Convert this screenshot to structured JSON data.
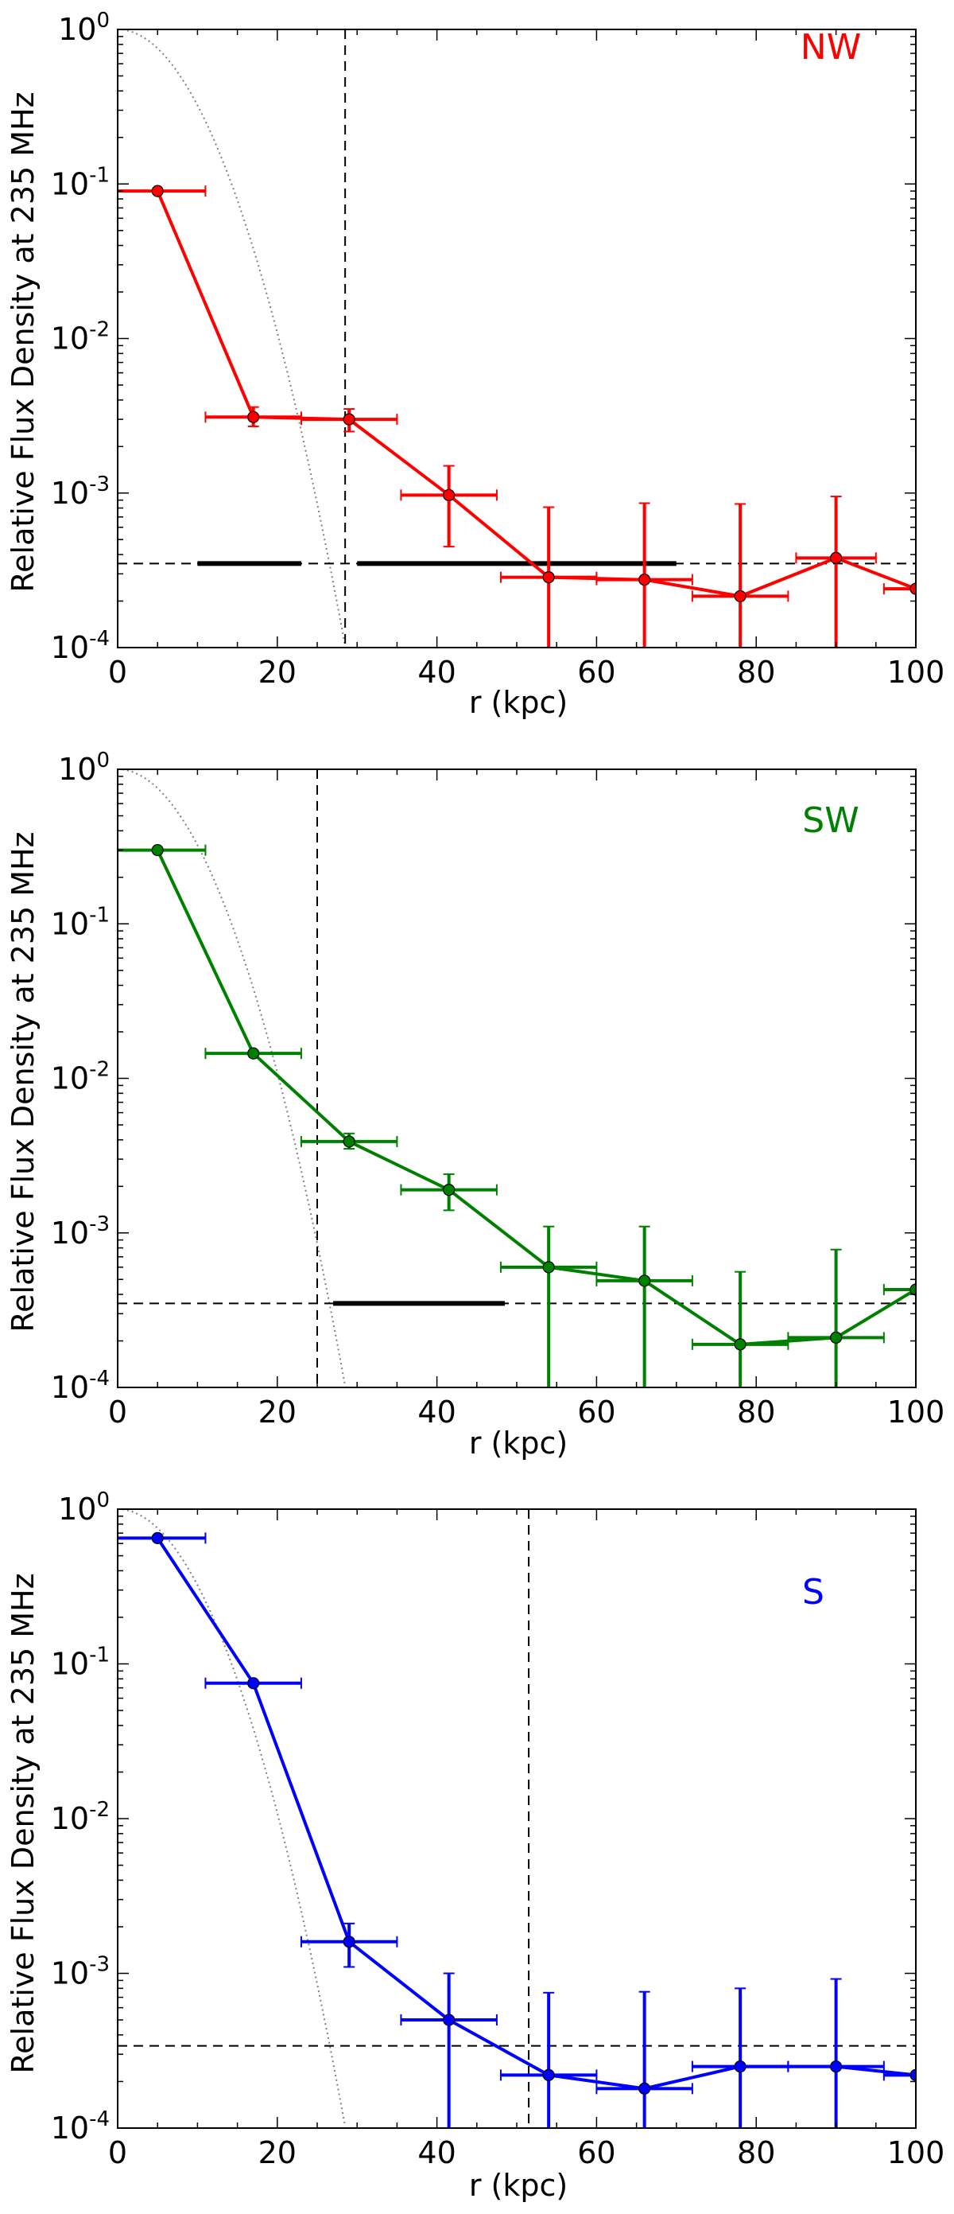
{
  "chart_data": [
    {
      "type": "line",
      "panel_label": "NW",
      "color": "#ff0000",
      "xlabel": "r (kpc)",
      "ylabel": "Relative Flux Density at 235 MHz",
      "xlim": [
        0,
        100
      ],
      "ylim": [
        0.0001,
        1
      ],
      "yscale": "log",
      "x_ticks": [
        0,
        20,
        40,
        60,
        80,
        100
      ],
      "x_tick_labels": [
        "0",
        "20",
        "40",
        "60",
        "80",
        "100"
      ],
      "y_ticks": [
        1,
        0.1,
        0.01,
        0.001,
        0.0001
      ],
      "y_tick_bases": [
        "10",
        "10",
        "10",
        "10",
        "10"
      ],
      "y_tick_exps": [
        "0",
        "-1",
        "-2",
        "-3",
        "-4"
      ],
      "vline_x": 28.5,
      "hline_y": 0.00035,
      "thick_segments": [
        [
          10,
          23
        ],
        [
          30,
          70
        ]
      ],
      "reference_curve": {
        "style": "dotted",
        "color": "#808080",
        "scale_kpc": 6.65
      },
      "series": [
        {
          "name": "NW",
          "x": [
            5,
            17,
            29,
            41.5,
            54,
            66,
            78,
            90,
            100
          ],
          "y": [
            0.09,
            0.0031,
            0.003,
            0.00097,
            0.000285,
            0.000275,
            0.000215,
            0.00038,
            0.00024
          ],
          "x_err": [
            6,
            6,
            6,
            6,
            6,
            6,
            6,
            5,
            4
          ],
          "y_low": [
            0.09,
            0.0027,
            0.0025,
            0.00045,
            0.0001,
            0.0001,
            0.0001,
            0.0001,
            0.00024
          ],
          "y_high": [
            0.09,
            0.0036,
            0.0035,
            0.0015,
            0.00081,
            0.00086,
            0.00085,
            0.00095,
            0.00024
          ]
        }
      ]
    },
    {
      "type": "line",
      "panel_label": "SW",
      "color": "#008000",
      "xlabel": "r (kpc)",
      "ylabel": "Relative Flux Density at 235 MHz",
      "xlim": [
        0,
        100
      ],
      "ylim": [
        0.0001,
        1
      ],
      "yscale": "log",
      "x_ticks": [
        0,
        20,
        40,
        60,
        80,
        100
      ],
      "x_tick_labels": [
        "0",
        "20",
        "40",
        "60",
        "80",
        "100"
      ],
      "y_ticks": [
        1,
        0.1,
        0.01,
        0.001,
        0.0001
      ],
      "y_tick_bases": [
        "10",
        "10",
        "10",
        "10",
        "10"
      ],
      "y_tick_exps": [
        "0",
        "-1",
        "-2",
        "-3",
        "-4"
      ],
      "vline_x": 25,
      "hline_y": 0.00035,
      "thick_segments": [
        [
          27,
          48.5
        ]
      ],
      "reference_curve": {
        "style": "dotted",
        "color": "#808080",
        "scale_kpc": 6.65
      },
      "series": [
        {
          "name": "SW",
          "x": [
            5,
            17,
            29,
            41.5,
            54,
            66,
            78,
            90,
            100
          ],
          "y": [
            0.3,
            0.0145,
            0.0039,
            0.0019,
            0.0006,
            0.00049,
            0.00019,
            0.00021,
            0.00043
          ],
          "x_err": [
            6,
            6,
            6,
            6,
            6,
            6,
            6,
            6,
            4
          ],
          "y_low": [
            0.3,
            0.0145,
            0.0035,
            0.0014,
            0.0001,
            0.0001,
            0.0001,
            0.0001,
            0.00043
          ],
          "y_high": [
            0.3,
            0.0145,
            0.0044,
            0.0024,
            0.0011,
            0.0011,
            0.00056,
            0.00078,
            0.00043
          ]
        }
      ]
    },
    {
      "type": "line",
      "panel_label": "S",
      "color": "#0000ff",
      "xlabel": "r (kpc)",
      "ylabel": "Relative Flux Density at 235 MHz",
      "xlim": [
        0,
        100
      ],
      "ylim": [
        0.0001,
        1
      ],
      "yscale": "log",
      "x_ticks": [
        0,
        20,
        40,
        60,
        80,
        100
      ],
      "x_tick_labels": [
        "0",
        "20",
        "40",
        "60",
        "80",
        "100"
      ],
      "y_ticks": [
        1,
        0.1,
        0.01,
        0.001,
        0.0001
      ],
      "y_tick_bases": [
        "10",
        "10",
        "10",
        "10",
        "10"
      ],
      "y_tick_exps": [
        "0",
        "-1",
        "-2",
        "-3",
        "-4"
      ],
      "vline_x": 51.5,
      "hline_y": 0.00034,
      "thick_segments": [],
      "reference_curve": {
        "style": "dotted",
        "color": "#808080",
        "scale_kpc": 6.65
      },
      "series": [
        {
          "name": "S",
          "x": [
            5,
            17,
            29,
            41.5,
            54,
            66,
            78,
            90,
            100
          ],
          "y": [
            0.65,
            0.075,
            0.0016,
            0.0005,
            0.00022,
            0.00018,
            0.00025,
            0.00025,
            0.00022
          ],
          "x_err": [
            6,
            6,
            6,
            6,
            6,
            6,
            6,
            6,
            4
          ],
          "y_low": [
            0.65,
            0.075,
            0.0011,
            0.0001,
            0.0001,
            0.0001,
            0.0001,
            0.0001,
            0.00022
          ],
          "y_high": [
            0.65,
            0.075,
            0.0021,
            0.001,
            0.00075,
            0.00076,
            0.0008,
            0.00092,
            0.00022
          ]
        }
      ]
    }
  ]
}
